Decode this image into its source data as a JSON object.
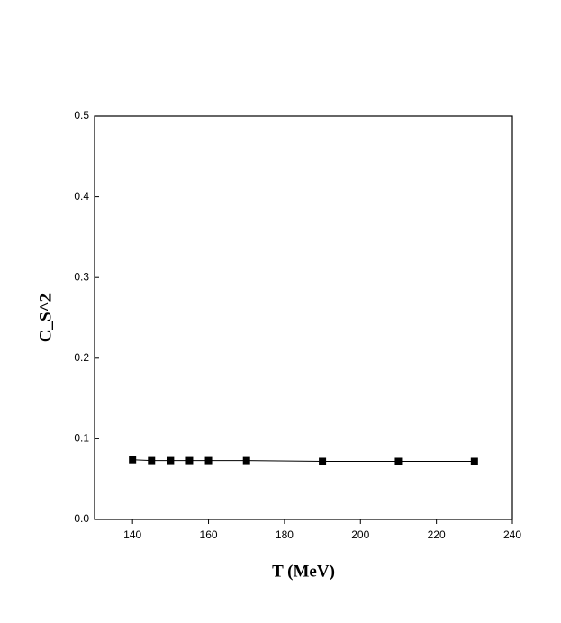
{
  "chart_data": {
    "type": "line",
    "x_label": "T (MeV)",
    "y_label": "C_S^2",
    "x": [
      140,
      145,
      150,
      155,
      160,
      170,
      190,
      210,
      230
    ],
    "series": [
      {
        "color": "#000000",
        "values": [
          0.074,
          0.073,
          0.073,
          0.073,
          0.073,
          0.073,
          0.072,
          0.072,
          0.072
        ]
      }
    ],
    "xlim": [
      130,
      240
    ],
    "xticks": [
      140,
      160,
      180,
      200,
      220,
      240
    ],
    "ylim": [
      0,
      0.5
    ],
    "yticks": [
      {
        "value": 0,
        "label": "0.0"
      },
      0.1,
      0.2,
      0.3,
      0.4,
      0.5
    ]
  }
}
